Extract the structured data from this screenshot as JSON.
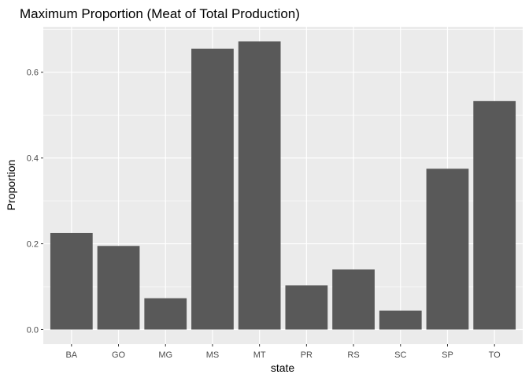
{
  "chart_data": {
    "type": "bar",
    "title": "Maximum Proportion (Meat of Total Production)",
    "xlabel": "state",
    "ylabel": "Proportion",
    "categories": [
      "BA",
      "GO",
      "MG",
      "MS",
      "MT",
      "PR",
      "RS",
      "SC",
      "SP",
      "TO"
    ],
    "values": [
      0.225,
      0.195,
      0.073,
      0.655,
      0.672,
      0.103,
      0.14,
      0.044,
      0.375,
      0.533
    ],
    "ylim": [
      -0.034,
      0.706
    ],
    "yticks": [
      0.0,
      0.2,
      0.4,
      0.6
    ],
    "ytick_labels": [
      "0.0",
      "0.2",
      "0.4",
      "0.6"
    ],
    "grid": true,
    "legend": "none",
    "colors": {
      "bar": "#595959",
      "panel_background": "#ebebeb",
      "gridline": "#ffffff"
    }
  }
}
